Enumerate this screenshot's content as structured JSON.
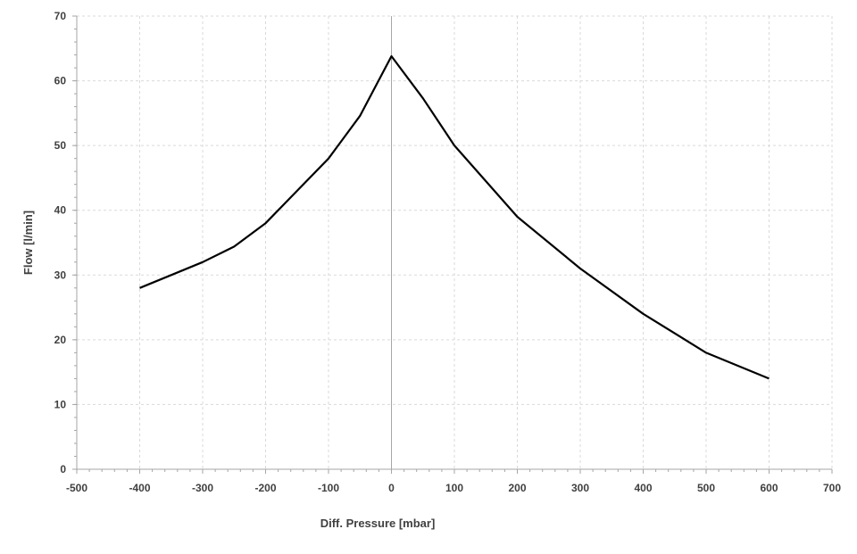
{
  "chart_data": {
    "type": "line",
    "title": "",
    "xlabel": "Diff. Pressure [mbar]",
    "ylabel": "Flow [l/min]",
    "xlim": [
      -500,
      700
    ],
    "ylim": [
      0,
      70
    ],
    "xticks": [
      -500,
      -400,
      -300,
      -200,
      -100,
      0,
      100,
      200,
      300,
      400,
      500,
      600,
      700
    ],
    "yticks": [
      0,
      10,
      20,
      30,
      40,
      50,
      60,
      70
    ],
    "grid": true,
    "legend": "none",
    "line_color": "#000000",
    "series": [
      {
        "x": [
          -400,
          -350,
          -300,
          -250,
          -200,
          -150,
          -100,
          -50,
          0,
          50,
          100,
          200,
          300,
          400,
          500,
          600
        ],
        "y": [
          28,
          30,
          32,
          34.4,
          38,
          43,
          48,
          54.6,
          63.8,
          57.3,
          50,
          39,
          31,
          24,
          18,
          14
        ]
      }
    ]
  }
}
